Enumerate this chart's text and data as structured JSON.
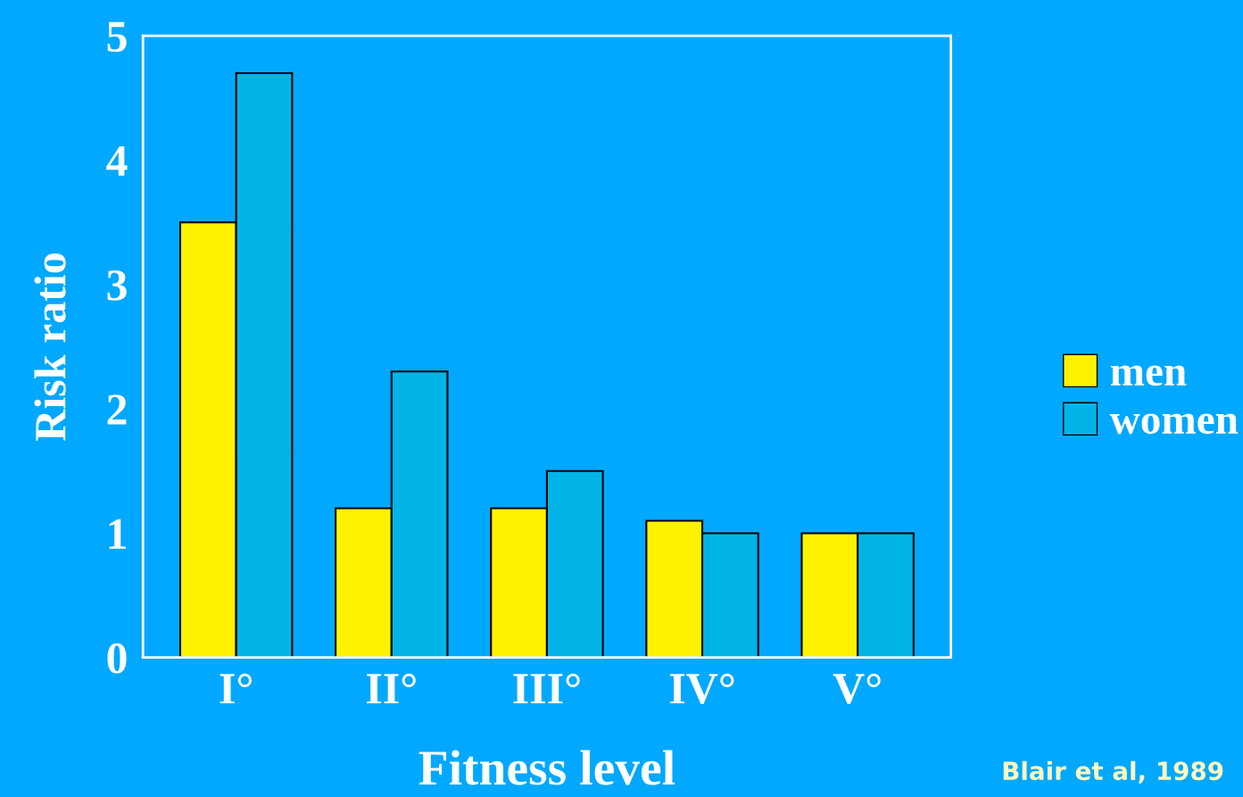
{
  "chart_data": {
    "type": "bar",
    "xlabel": "Fitness level",
    "ylabel": "Risk ratio",
    "categories": [
      "I°",
      "II°",
      "III°",
      "IV°",
      "V°"
    ],
    "series": [
      {
        "name": "men",
        "color": "#fff200",
        "values": [
          3.5,
          1.2,
          1.2,
          1.1,
          1.0
        ]
      },
      {
        "name": "women",
        "color": "#00b4e8",
        "values": [
          4.7,
          2.3,
          1.5,
          1.0,
          1.0
        ]
      }
    ],
    "ylim": [
      0,
      5
    ],
    "yticks": [
      0,
      1,
      2,
      3,
      4,
      5
    ],
    "grid": false,
    "legend": "right",
    "annotations": [
      "Blair et al, 1989"
    ]
  }
}
